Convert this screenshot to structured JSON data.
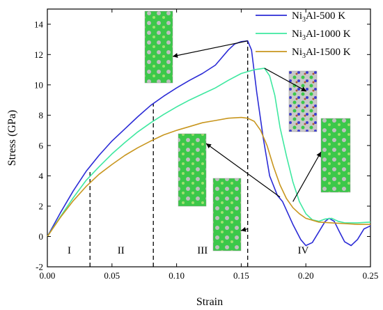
{
  "chart_data": {
    "type": "line",
    "title": "",
    "xlabel": "Strain",
    "ylabel": "Stress (GPa)",
    "xlim": [
      0.0,
      0.25
    ],
    "ylim": [
      -2,
      15
    ],
    "x_ticks": [
      "0.00",
      "0.05",
      "0.10",
      "0.15",
      "0.20",
      "0.25"
    ],
    "y_ticks": [
      "-2",
      "0",
      "2",
      "4",
      "6",
      "8",
      "10",
      "12",
      "14"
    ],
    "grid": false,
    "legend_position": "top-right",
    "series": [
      {
        "name_main": "Ni",
        "name_sub": "3",
        "name_rest": "Al-500 K",
        "color": "#2b2bd6",
        "points": [
          [
            0.0,
            0.0
          ],
          [
            0.01,
            1.55
          ],
          [
            0.02,
            3.0
          ],
          [
            0.03,
            4.3
          ],
          [
            0.04,
            5.35
          ],
          [
            0.05,
            6.3
          ],
          [
            0.06,
            7.1
          ],
          [
            0.07,
            7.9
          ],
          [
            0.08,
            8.65
          ],
          [
            0.09,
            9.25
          ],
          [
            0.1,
            9.8
          ],
          [
            0.11,
            10.3
          ],
          [
            0.12,
            10.75
          ],
          [
            0.13,
            11.3
          ],
          [
            0.135,
            11.8
          ],
          [
            0.14,
            12.3
          ],
          [
            0.145,
            12.7
          ],
          [
            0.15,
            12.85
          ],
          [
            0.155,
            12.9
          ],
          [
            0.158,
            12.3
          ],
          [
            0.162,
            9.5
          ],
          [
            0.167,
            6.5
          ],
          [
            0.172,
            4.0
          ],
          [
            0.178,
            2.7
          ],
          [
            0.182,
            2.3
          ],
          [
            0.19,
            0.8
          ],
          [
            0.196,
            -0.2
          ],
          [
            0.2,
            -0.6
          ],
          [
            0.205,
            -0.4
          ],
          [
            0.21,
            0.3
          ],
          [
            0.215,
            1.0
          ],
          [
            0.218,
            1.2
          ],
          [
            0.222,
            1.0
          ],
          [
            0.226,
            0.3
          ],
          [
            0.23,
            -0.35
          ],
          [
            0.235,
            -0.6
          ],
          [
            0.24,
            -0.2
          ],
          [
            0.245,
            0.5
          ],
          [
            0.25,
            0.7
          ]
        ]
      },
      {
        "name_main": "Ni",
        "name_sub": "3",
        "name_rest": "Al-1000 K",
        "color": "#3ee8a0",
        "points": [
          [
            0.0,
            0.0
          ],
          [
            0.01,
            1.3
          ],
          [
            0.02,
            2.55
          ],
          [
            0.03,
            3.7
          ],
          [
            0.04,
            4.6
          ],
          [
            0.05,
            5.45
          ],
          [
            0.06,
            6.2
          ],
          [
            0.07,
            6.9
          ],
          [
            0.08,
            7.5
          ],
          [
            0.09,
            8.05
          ],
          [
            0.1,
            8.55
          ],
          [
            0.11,
            9.0
          ],
          [
            0.12,
            9.4
          ],
          [
            0.13,
            9.8
          ],
          [
            0.14,
            10.3
          ],
          [
            0.15,
            10.75
          ],
          [
            0.16,
            11.0
          ],
          [
            0.168,
            11.1
          ],
          [
            0.172,
            10.6
          ],
          [
            0.176,
            9.3
          ],
          [
            0.18,
            7.2
          ],
          [
            0.185,
            5.3
          ],
          [
            0.19,
            3.6
          ],
          [
            0.195,
            2.3
          ],
          [
            0.2,
            1.5
          ],
          [
            0.205,
            1.1
          ],
          [
            0.21,
            1.0
          ],
          [
            0.215,
            1.15
          ],
          [
            0.22,
            1.2
          ],
          [
            0.225,
            1.0
          ],
          [
            0.23,
            0.9
          ],
          [
            0.24,
            0.9
          ],
          [
            0.25,
            0.95
          ]
        ]
      },
      {
        "name_main": "Ni",
        "name_sub": "3",
        "name_rest": "Al-1500 K",
        "color": "#c8961e",
        "points": [
          [
            0.0,
            0.0
          ],
          [
            0.01,
            1.25
          ],
          [
            0.02,
            2.35
          ],
          [
            0.03,
            3.3
          ],
          [
            0.04,
            4.1
          ],
          [
            0.05,
            4.75
          ],
          [
            0.06,
            5.35
          ],
          [
            0.07,
            5.85
          ],
          [
            0.08,
            6.3
          ],
          [
            0.09,
            6.7
          ],
          [
            0.1,
            7.0
          ],
          [
            0.11,
            7.25
          ],
          [
            0.12,
            7.5
          ],
          [
            0.13,
            7.65
          ],
          [
            0.14,
            7.8
          ],
          [
            0.15,
            7.85
          ],
          [
            0.155,
            7.8
          ],
          [
            0.16,
            7.6
          ],
          [
            0.165,
            7.0
          ],
          [
            0.17,
            6.0
          ],
          [
            0.175,
            4.6
          ],
          [
            0.18,
            3.4
          ],
          [
            0.185,
            2.5
          ],
          [
            0.19,
            1.9
          ],
          [
            0.195,
            1.5
          ],
          [
            0.2,
            1.2
          ],
          [
            0.21,
            0.95
          ],
          [
            0.22,
            0.9
          ],
          [
            0.23,
            0.85
          ],
          [
            0.24,
            0.8
          ],
          [
            0.25,
            0.8
          ]
        ]
      }
    ],
    "regions": {
      "boundaries": [
        0.033,
        0.082,
        0.155
      ],
      "labels": [
        {
          "text": "I",
          "x": 0.017
        },
        {
          "text": "II",
          "x": 0.057
        },
        {
          "text": "III",
          "x": 0.12
        },
        {
          "text": "IV",
          "x": 0.198
        }
      ],
      "label_y": -0.9
    },
    "snapshots": [
      {
        "from_x": 0.155,
        "from_y": 12.9,
        "kind": "a"
      },
      {
        "from_x": 0.168,
        "from_y": 11.1,
        "kind": "b"
      },
      {
        "from_x": 0.18,
        "from_y": 2.6,
        "kind": "c"
      },
      {
        "from_x": 0.19,
        "from_y": 2.3,
        "kind": "d"
      },
      {
        "from_x": 0.155,
        "from_y": 0.5,
        "kind": "e"
      }
    ]
  }
}
